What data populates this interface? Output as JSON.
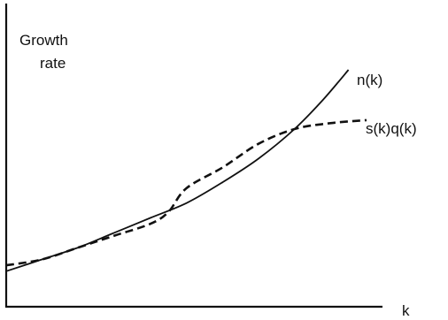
{
  "chart_data": {
    "type": "line",
    "title": "",
    "ylabel_line1": "Growth",
    "ylabel_line2": "rate",
    "xlabel": "k",
    "grid": false,
    "ticks": false,
    "series": [
      {
        "name": "n(k)",
        "style": "solid",
        "points": [
          [
            0.0,
            0.12
          ],
          [
            0.1,
            0.16
          ],
          [
            0.2,
            0.2
          ],
          [
            0.3,
            0.25
          ],
          [
            0.4,
            0.3
          ],
          [
            0.5,
            0.35
          ],
          [
            0.6,
            0.42
          ],
          [
            0.7,
            0.5
          ],
          [
            0.8,
            0.6
          ],
          [
            0.88,
            0.7
          ],
          [
            0.95,
            0.8
          ]
        ]
      },
      {
        "name": "s(k)q(k)",
        "style": "dashed",
        "points": [
          [
            0.0,
            0.14
          ],
          [
            0.1,
            0.16
          ],
          [
            0.2,
            0.2
          ],
          [
            0.3,
            0.24
          ],
          [
            0.4,
            0.28
          ],
          [
            0.45,
            0.32
          ],
          [
            0.5,
            0.4
          ],
          [
            0.6,
            0.47
          ],
          [
            0.7,
            0.55
          ],
          [
            0.8,
            0.6
          ],
          [
            0.9,
            0.62
          ],
          [
            1.0,
            0.63
          ]
        ]
      }
    ]
  }
}
